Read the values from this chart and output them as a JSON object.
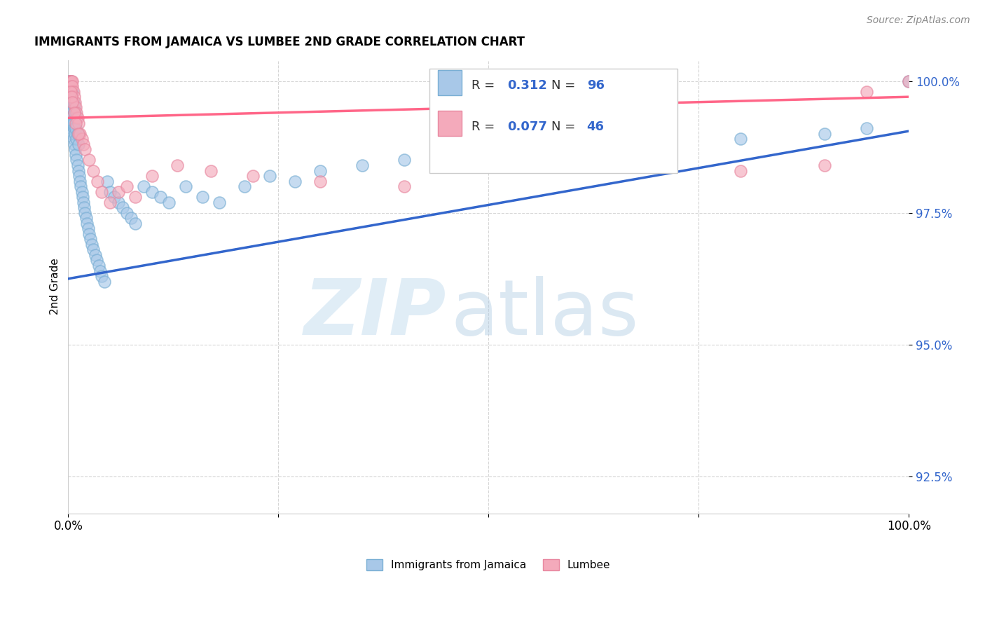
{
  "title": "IMMIGRANTS FROM JAMAICA VS LUMBEE 2ND GRADE CORRELATION CHART",
  "source": "Source: ZipAtlas.com",
  "ylabel": "2nd Grade",
  "xlim": [
    0.0,
    1.0
  ],
  "ylim": [
    0.918,
    1.004
  ],
  "yticks": [
    0.925,
    0.95,
    0.975,
    1.0
  ],
  "ytick_labels": [
    "92.5%",
    "95.0%",
    "97.5%",
    "100.0%"
  ],
  "legend_r1_val": "0.312",
  "legend_n1_val": "96",
  "legend_r2_val": "0.077",
  "legend_n2_val": "46",
  "blue_fill": "#A8C8E8",
  "blue_edge": "#7AAFD4",
  "pink_fill": "#F4AABB",
  "pink_edge": "#E888A0",
  "blue_line_color": "#3366CC",
  "pink_line_color": "#FF6688",
  "legend_label1": "Immigrants from Jamaica",
  "legend_label2": "Lumbee",
  "blue_scatter_x": [
    0.001,
    0.001,
    0.001,
    0.001,
    0.001,
    0.001,
    0.001,
    0.002,
    0.002,
    0.002,
    0.002,
    0.002,
    0.002,
    0.002,
    0.003,
    0.003,
    0.003,
    0.003,
    0.003,
    0.003,
    0.004,
    0.004,
    0.004,
    0.004,
    0.005,
    0.005,
    0.005,
    0.005,
    0.006,
    0.006,
    0.006,
    0.007,
    0.007,
    0.007,
    0.008,
    0.008,
    0.008,
    0.009,
    0.009,
    0.01,
    0.01,
    0.01,
    0.011,
    0.011,
    0.012,
    0.012,
    0.013,
    0.014,
    0.015,
    0.016,
    0.017,
    0.018,
    0.019,
    0.02,
    0.021,
    0.022,
    0.024,
    0.025,
    0.026,
    0.028,
    0.03,
    0.032,
    0.034,
    0.036,
    0.038,
    0.04,
    0.043,
    0.046,
    0.05,
    0.055,
    0.06,
    0.065,
    0.07,
    0.075,
    0.08,
    0.09,
    0.1,
    0.11,
    0.12,
    0.14,
    0.16,
    0.18,
    0.21,
    0.24,
    0.27,
    0.3,
    0.35,
    0.4,
    0.5,
    0.6,
    0.7,
    0.8,
    0.9,
    0.95,
    1.0,
    0.003
  ],
  "blue_scatter_y": [
    0.994,
    0.996,
    0.997,
    0.998,
    0.999,
    1.0,
    1.0,
    0.993,
    0.994,
    0.996,
    0.997,
    0.998,
    0.999,
    1.0,
    0.992,
    0.993,
    0.995,
    0.997,
    0.998,
    1.0,
    0.991,
    0.993,
    0.996,
    0.998,
    0.99,
    0.992,
    0.995,
    0.998,
    0.989,
    0.992,
    0.996,
    0.988,
    0.991,
    0.995,
    0.987,
    0.99,
    0.994,
    0.986,
    0.991,
    0.985,
    0.989,
    0.993,
    0.984,
    0.99,
    0.983,
    0.988,
    0.982,
    0.981,
    0.98,
    0.979,
    0.978,
    0.977,
    0.976,
    0.975,
    0.974,
    0.973,
    0.972,
    0.971,
    0.97,
    0.969,
    0.968,
    0.967,
    0.966,
    0.965,
    0.964,
    0.963,
    0.962,
    0.981,
    0.979,
    0.978,
    0.977,
    0.976,
    0.975,
    0.974,
    0.973,
    0.98,
    0.979,
    0.978,
    0.977,
    0.98,
    0.978,
    0.977,
    0.98,
    0.982,
    0.981,
    0.983,
    0.984,
    0.985,
    0.986,
    0.987,
    0.988,
    0.989,
    0.99,
    0.991,
    1.0,
    1.0
  ],
  "pink_scatter_x": [
    0.001,
    0.002,
    0.002,
    0.003,
    0.003,
    0.004,
    0.004,
    0.005,
    0.005,
    0.006,
    0.007,
    0.008,
    0.009,
    0.01,
    0.011,
    0.012,
    0.014,
    0.016,
    0.018,
    0.02,
    0.025,
    0.03,
    0.035,
    0.04,
    0.05,
    0.06,
    0.07,
    0.08,
    0.1,
    0.13,
    0.17,
    0.22,
    0.3,
    0.4,
    0.5,
    0.65,
    0.8,
    0.9,
    0.95,
    1.0,
    0.003,
    0.004,
    0.005,
    0.007,
    0.009,
    0.012
  ],
  "pink_scatter_y": [
    1.0,
    1.0,
    0.999,
    1.0,
    0.999,
    1.0,
    0.999,
    1.0,
    0.999,
    0.998,
    0.997,
    0.996,
    0.995,
    0.994,
    0.993,
    0.992,
    0.99,
    0.989,
    0.988,
    0.987,
    0.985,
    0.983,
    0.981,
    0.979,
    0.977,
    0.979,
    0.98,
    0.978,
    0.982,
    0.984,
    0.983,
    0.982,
    0.981,
    0.98,
    0.985,
    0.984,
    0.983,
    0.984,
    0.998,
    1.0,
    0.998,
    0.997,
    0.996,
    0.994,
    0.992,
    0.99
  ],
  "blue_line_x0": 0.0,
  "blue_line_y0": 0.9625,
  "blue_line_x1": 1.0,
  "blue_line_y1": 0.9905,
  "pink_line_x0": 0.0,
  "pink_line_y0": 0.993,
  "pink_line_x1": 1.0,
  "pink_line_y1": 0.997
}
